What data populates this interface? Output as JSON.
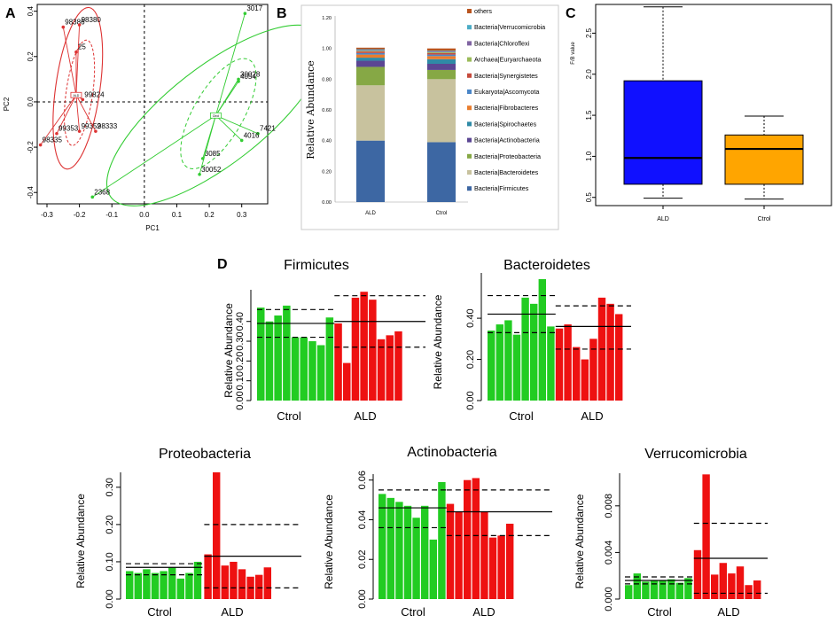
{
  "colors": {
    "green": "#22cc22",
    "red": "#ee1111",
    "pca_red": "#dd3333",
    "pca_green": "#33cc33",
    "box_blue": "#1010ff",
    "box_orange": "#ffa500"
  },
  "chart_data": [
    {
      "panel": "A",
      "type": "scatter",
      "title": "",
      "xlabel": "PC1",
      "ylabel": "PC2",
      "xlim": [
        -0.33,
        0.38
      ],
      "ylim": [
        -0.45,
        0.43
      ],
      "xticks": [
        "-0.3",
        "-0.2",
        "-0.1",
        "0.0",
        "0.1",
        "0.2",
        "0.3"
      ],
      "yticks": [
        "-0.4",
        "-0.2",
        "0.0",
        "0.2",
        "0.4"
      ],
      "centroid_labels": [
        "ALD",
        "Ctrol"
      ],
      "series": [
        {
          "name": "ALD",
          "points": [
            {
              "label": "98386",
              "x": -0.25,
              "y": 0.33
            },
            {
              "label": "98380",
              "x": -0.2,
              "y": 0.34
            },
            {
              "label": "25",
              "x": -0.21,
              "y": 0.22
            },
            {
              "label": "99824",
              "x": -0.19,
              "y": 0.01
            },
            {
              "label": "99352",
              "x": -0.2,
              "y": -0.13
            },
            {
              "label": "98333",
              "x": -0.15,
              "y": -0.13
            },
            {
              "label": "99353",
              "x": -0.27,
              "y": -0.14
            },
            {
              "label": "98335",
              "x": -0.32,
              "y": -0.19
            }
          ],
          "centroid": [
            -0.21,
            0.03
          ]
        },
        {
          "name": "Ctrol",
          "points": [
            {
              "label": "3017",
              "x": 0.31,
              "y": 0.39
            },
            {
              "label": "30028",
              "x": 0.29,
              "y": 0.1
            },
            {
              "label": "4054",
              "x": 0.29,
              "y": 0.09
            },
            {
              "label": "7421",
              "x": 0.35,
              "y": -0.14
            },
            {
              "label": "4016",
              "x": 0.3,
              "y": -0.17
            },
            {
              "label": "3085",
              "x": 0.18,
              "y": -0.25
            },
            {
              "label": "30052",
              "x": 0.17,
              "y": -0.32
            },
            {
              "label": "2368",
              "x": -0.16,
              "y": -0.42
            }
          ],
          "centroid": [
            0.22,
            -0.06
          ]
        }
      ]
    },
    {
      "panel": "B",
      "type": "bar",
      "stacked": true,
      "title": "",
      "xlabel": "",
      "ylabel": "Relative Abundance",
      "ylim": [
        0,
        1.2
      ],
      "yticks": [
        "0.00",
        "0.20",
        "0.40",
        "0.60",
        "0.80",
        "1.00",
        "1.20"
      ],
      "categories": [
        "ALD",
        "Ctrol"
      ],
      "series": [
        {
          "name": "Bacteria|Firmicutes",
          "color": "#3d67a3",
          "values": [
            0.4,
            0.39
          ]
        },
        {
          "name": "Bacteria|Bacteroidetes",
          "color": "#c8c29e",
          "values": [
            0.36,
            0.41
          ]
        },
        {
          "name": "Bacteria|Proteobacteria",
          "color": "#86a845",
          "values": [
            0.12,
            0.06
          ]
        },
        {
          "name": "Bacteria|Actinobacteria",
          "color": "#5b4693",
          "values": [
            0.04,
            0.04
          ]
        },
        {
          "name": "Bacteria|Spirochaetes",
          "color": "#2f8aa6",
          "values": [
            0.02,
            0.03
          ]
        },
        {
          "name": "Bacteria|Fibrobacteres",
          "color": "#e97d2e",
          "values": [
            0.02,
            0.02
          ]
        },
        {
          "name": "Eukaryota|Ascomycota",
          "color": "#4a86c8",
          "values": [
            0.01,
            0.01
          ]
        },
        {
          "name": "Bacteria|Synergistetes",
          "color": "#c64a3c",
          "values": [
            0.01,
            0.01
          ]
        },
        {
          "name": "Archaea|Euryarchaeota",
          "color": "#9bbb59",
          "values": [
            0.005,
            0.005
          ]
        },
        {
          "name": "Bacteria|Chloroflexi",
          "color": "#8064a2",
          "values": [
            0.005,
            0.005
          ]
        },
        {
          "name": "Bacteria|Verrucomicrobia",
          "color": "#4bacc6",
          "values": [
            0.005,
            0.005
          ]
        },
        {
          "name": "others",
          "color": "#b9541e",
          "values": [
            0.01,
            0.015
          ]
        }
      ],
      "legend_order": [
        "others",
        "Bacteria|Verrucomicrobia",
        "Bacteria|Chloroflexi",
        "Archaea|Euryarchaeota",
        "Bacteria|Synergistetes",
        "Eukaryota|Ascomycota",
        "Bacteria|Fibrobacteres",
        "Bacteria|Spirochaetes",
        "Bacteria|Actinobacteria",
        "Bacteria|Proteobacteria",
        "Bacteria|Bacteroidetes",
        "Bacteria|Firmicutes"
      ]
    },
    {
      "panel": "C",
      "type": "box",
      "title": "",
      "xlabel": "",
      "ylabel": "F/B value",
      "ylim": [
        0.4,
        2.85
      ],
      "yticks": [
        "0.5",
        "1.0",
        "1.5",
        "2.0",
        "2.5"
      ],
      "categories": [
        "ALD",
        "Ctrol"
      ],
      "boxes": [
        {
          "name": "ALD",
          "color": "#1010ff",
          "min": 0.49,
          "q1": 0.66,
          "median": 0.98,
          "q3": 1.92,
          "max": 2.82
        },
        {
          "name": "Ctrol",
          "color": "#ffa500",
          "min": 0.48,
          "q1": 0.66,
          "median": 1.09,
          "q3": 1.26,
          "max": 1.49
        }
      ]
    },
    {
      "panel": "D",
      "type": "bar",
      "title": "Firmicutes",
      "ylabel": "Relative Abundance",
      "yticks": [
        "0.00",
        "0.10",
        "0.20",
        "0.30",
        "0.40"
      ],
      "ymax": 0.56,
      "groups": [
        "Ctrol",
        "ALD"
      ],
      "ctrol_values": [
        0.47,
        0.4,
        0.43,
        0.48,
        0.32,
        0.32,
        0.3,
        0.28,
        0.42
      ],
      "ald_values": [
        0.39,
        0.19,
        0.52,
        0.55,
        0.51,
        0.31,
        0.33,
        0.35
      ],
      "ctrol_stats": {
        "mean": 0.39,
        "upper": 0.46,
        "lower": 0.32
      },
      "ald_stats": {
        "mean": 0.4,
        "upper": 0.53,
        "lower": 0.27
      }
    },
    {
      "panel": "D",
      "type": "bar",
      "title": "Bacteroidetes",
      "ylabel": "Relative Abundance",
      "yticks": [
        "0.00",
        "0.20",
        "0.40"
      ],
      "ymax": 0.62,
      "groups": [
        "Ctrol",
        "ALD"
      ],
      "ctrol_values": [
        0.34,
        0.37,
        0.39,
        0.32,
        0.5,
        0.47,
        0.59,
        0.36
      ],
      "ald_values": [
        0.35,
        0.37,
        0.26,
        0.2,
        0.3,
        0.5,
        0.47,
        0.42
      ],
      "ctrol_stats": {
        "mean": 0.42,
        "upper": 0.51,
        "lower": 0.33
      },
      "ald_stats": {
        "mean": 0.36,
        "upper": 0.46,
        "lower": 0.25
      }
    },
    {
      "panel": "D",
      "type": "bar",
      "title": "Proteobacteria",
      "ylabel": "Relative Abundance",
      "yticks": [
        "0.00",
        "0.10",
        "0.20",
        "0.30"
      ],
      "ymax": 0.34,
      "groups": [
        "Ctrol",
        "ALD"
      ],
      "ctrol_values": [
        0.075,
        0.07,
        0.08,
        0.07,
        0.075,
        0.085,
        0.055,
        0.07,
        0.1
      ],
      "ald_values": [
        0.12,
        0.34,
        0.09,
        0.1,
        0.08,
        0.06,
        0.065,
        0.085
      ],
      "ctrol_stats": {
        "mean": 0.085,
        "upper": 0.095,
        "lower": 0.065
      },
      "ald_stats": {
        "mean": 0.115,
        "upper": 0.2,
        "lower": 0.03
      }
    },
    {
      "panel": "D",
      "type": "bar",
      "title": "Actinobacteria",
      "ylabel": "Relative Abundance",
      "yticks": [
        "0.00",
        "0.02",
        "0.04",
        "0.06"
      ],
      "ymax": 0.063,
      "groups": [
        "Ctrol",
        "ALD"
      ],
      "ctrol_values": [
        0.053,
        0.051,
        0.049,
        0.047,
        0.041,
        0.047,
        0.03,
        0.059
      ],
      "ald_values": [
        0.048,
        0.044,
        0.06,
        0.061,
        0.044,
        0.031,
        0.032,
        0.038
      ],
      "ctrol_stats": {
        "mean": 0.046,
        "upper": 0.055,
        "lower": 0.036
      },
      "ald_stats": {
        "mean": 0.044,
        "upper": 0.055,
        "lower": 0.032
      }
    },
    {
      "panel": "D",
      "type": "bar",
      "title": "Verrucomicrobia",
      "ylabel": "Relative Abundance",
      "yticks": [
        "0.000",
        "0.004",
        "0.008"
      ],
      "ymax": 0.0108,
      "groups": [
        "Ctrol",
        "ALD"
      ],
      "ctrol_values": [
        0.0012,
        0.0022,
        0.0015,
        0.0016,
        0.0016,
        0.0017,
        0.0014,
        0.0018
      ],
      "ald_values": [
        0.0042,
        0.0107,
        0.0021,
        0.0031,
        0.0022,
        0.0028,
        0.0012,
        0.0016
      ],
      "ctrol_stats": {
        "mean": 0.0016,
        "upper": 0.0019,
        "lower": 0.0013
      },
      "ald_stats": {
        "mean": 0.0035,
        "upper": 0.0065,
        "lower": 0.0005
      }
    }
  ],
  "panel_labels": [
    "A",
    "B",
    "C",
    "D"
  ]
}
